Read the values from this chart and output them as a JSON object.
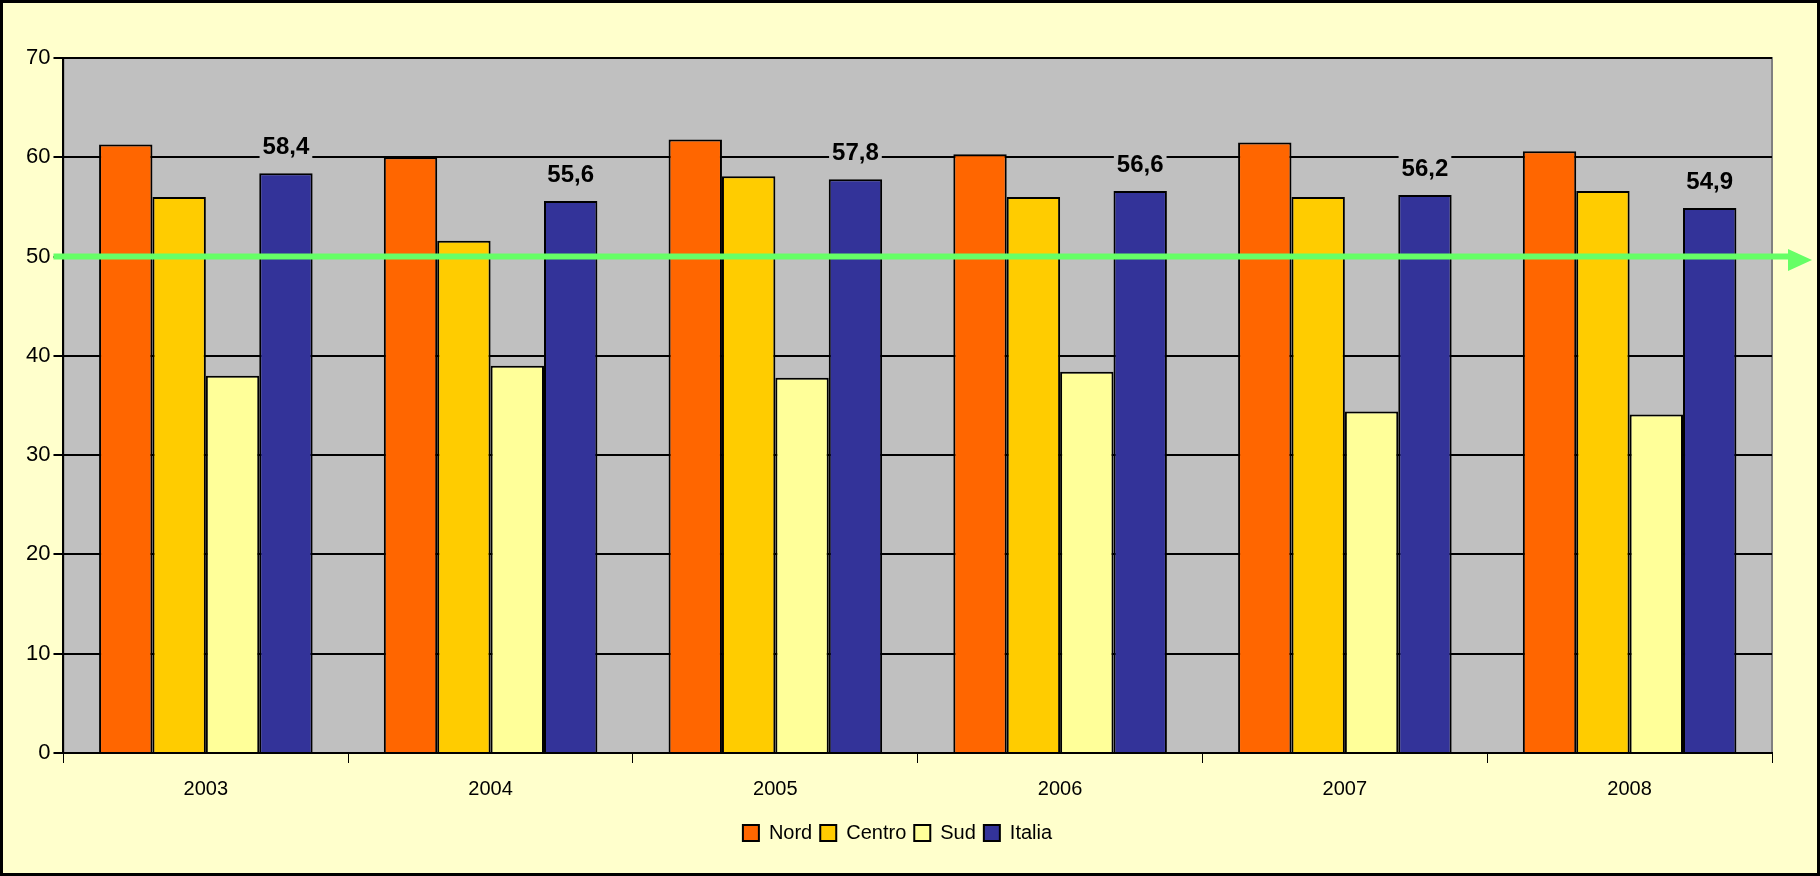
{
  "chart_data": {
    "type": "bar",
    "categories": [
      "2003",
      "2004",
      "2005",
      "2006",
      "2007",
      "2008"
    ],
    "series": [
      {
        "name": "Nord",
        "color": "#ff6600",
        "values": [
          61.3,
          60.0,
          61.8,
          60.3,
          61.5,
          60.6
        ]
      },
      {
        "name": "Centro",
        "color": "#ffcc00",
        "values": [
          56.0,
          51.6,
          58.1,
          56.0,
          56.0,
          56.6
        ]
      },
      {
        "name": "Sud",
        "color": "#ffff99",
        "values": [
          38.0,
          39.0,
          37.8,
          38.4,
          34.4,
          34.1
        ]
      },
      {
        "name": "Italia",
        "color": "#333399",
        "values": [
          58.4,
          55.6,
          57.8,
          56.6,
          56.2,
          54.9
        ],
        "value_labels": [
          "58,4",
          "55,6",
          "57,8",
          "56,6",
          "56,2",
          "54,9"
        ]
      }
    ],
    "ylim": [
      0,
      70
    ],
    "yticks": [
      0,
      10,
      20,
      30,
      40,
      50,
      60,
      70
    ],
    "grid": "y",
    "legend": "bottom",
    "ref_lines": [
      {
        "axis": "y",
        "value": 50,
        "color": "#66ff66"
      }
    ]
  }
}
